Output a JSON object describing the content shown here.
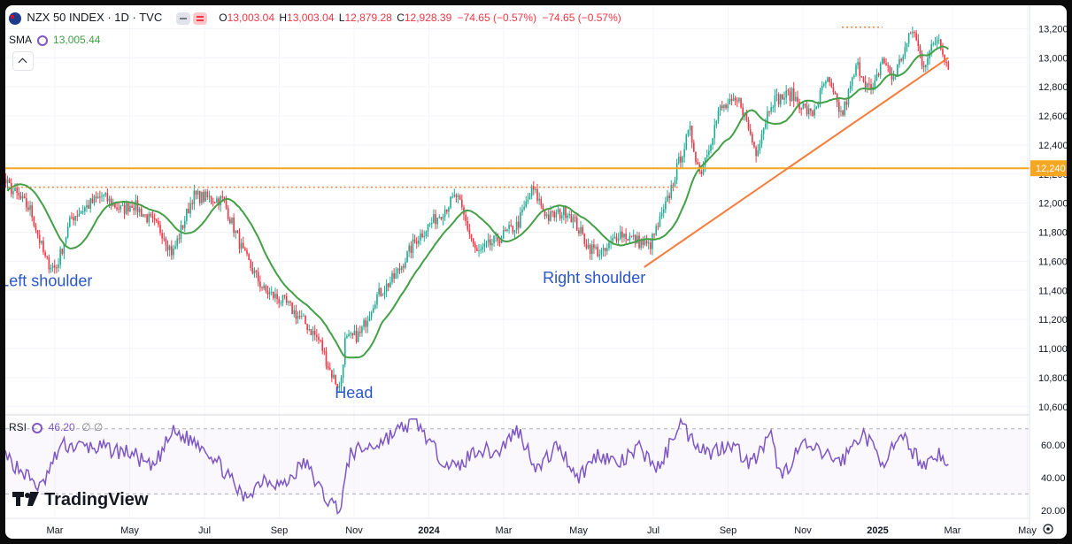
{
  "header": {
    "symbol": "NZX 50 INDEX · 1D · TVC",
    "open_label": "O",
    "open": "13,003.04",
    "high_label": "H",
    "high": "13,003.04",
    "low_label": "L",
    "low": "12,879.28",
    "close_label": "C",
    "close": "12,928.39",
    "change": "−74.65 (−0.57%)",
    "change2": "−74.65 (−0.57%)",
    "sma_label": "SMA",
    "sma_value": "13,005.44",
    "rsi_label": "RSI",
    "rsi_value": "46.20",
    "rsi_extra": "∅ ∅"
  },
  "branding": {
    "logo_text": "TradingView"
  },
  "icons": {
    "flag": "nz-flag-icon",
    "settings": "gear-icon",
    "collapse": "chevron-up-icon"
  },
  "colors": {
    "up": "#22ab94",
    "down": "#f23645",
    "sma": "#43a047",
    "resistance": "#f5a623",
    "trendline": "#f57c3a",
    "rsi": "#7e57c2",
    "annotation": "#2a56c6"
  },
  "chart_data": {
    "type": "candlestick",
    "price_axis": {
      "ticks": [
        "13,200",
        "13,000",
        "12,800",
        "12,600",
        "12,400",
        "12,200",
        "12,000",
        "11,800",
        "11,600",
        "11,400",
        "11,200",
        "11,000",
        "10,800",
        "10,600"
      ],
      "ylim": [
        10550,
        13300
      ]
    },
    "rsi_axis": {
      "ticks": [
        "60.00",
        "40.00",
        "20.00"
      ],
      "levels": [
        70,
        30
      ],
      "ylim": [
        15,
        78
      ]
    },
    "time_axis": {
      "labels": [
        "Mar",
        "May",
        "Jul",
        "Sep",
        "Nov",
        "2024",
        "Mar",
        "May",
        "Jul",
        "Sep",
        "Nov",
        "2025",
        "Mar",
        "May"
      ]
    },
    "resistance_line": {
      "value": 12240,
      "label": "12,240"
    },
    "annotations": [
      {
        "text": "Left shoulder",
        "t": 0.03,
        "v": 11430
      },
      {
        "text": "Head",
        "t": 0.36,
        "v": 10660
      },
      {
        "text": "Right shoulder",
        "t": 0.565,
        "v": 11450
      }
    ],
    "dotted_levels": [
      {
        "t1": 0.02,
        "t2": 0.7,
        "value": 12110
      },
      {
        "t1": 0.86,
        "t2": 0.9,
        "value": 13210
      }
    ],
    "trendline": {
      "t1": 0.665,
      "v1": 11560,
      "t2": 0.965,
      "v2": 13000
    },
    "price_keypoints": [
      [
        0.0,
        11900
      ],
      [
        0.02,
        12150
      ],
      [
        0.03,
        12180
      ],
      [
        0.06,
        11950
      ],
      [
        0.075,
        11600
      ],
      [
        0.085,
        11550
      ],
      [
        0.1,
        11900
      ],
      [
        0.13,
        12050
      ],
      [
        0.15,
        11950
      ],
      [
        0.16,
        12000
      ],
      [
        0.19,
        11800
      ],
      [
        0.2,
        11650
      ],
      [
        0.22,
        12050
      ],
      [
        0.25,
        12020
      ],
      [
        0.27,
        11650
      ],
      [
        0.29,
        11400
      ],
      [
        0.31,
        11320
      ],
      [
        0.33,
        11180
      ],
      [
        0.345,
        11050
      ],
      [
        0.355,
        10850
      ],
      [
        0.365,
        10720
      ],
      [
        0.37,
        11050
      ],
      [
        0.385,
        11100
      ],
      [
        0.4,
        11350
      ],
      [
        0.42,
        11500
      ],
      [
        0.44,
        11750
      ],
      [
        0.46,
        11900
      ],
      [
        0.48,
        12050
      ],
      [
        0.5,
        11650
      ],
      [
        0.52,
        11750
      ],
      [
        0.54,
        11850
      ],
      [
        0.555,
        12100
      ],
      [
        0.57,
        11900
      ],
      [
        0.59,
        11950
      ],
      [
        0.61,
        11700
      ],
      [
        0.625,
        11650
      ],
      [
        0.64,
        11800
      ],
      [
        0.67,
        11700
      ],
      [
        0.685,
        11950
      ],
      [
        0.7,
        12300
      ],
      [
        0.71,
        12500
      ],
      [
        0.72,
        12200
      ],
      [
        0.74,
        12650
      ],
      [
        0.76,
        12700
      ],
      [
        0.775,
        12350
      ],
      [
        0.79,
        12700
      ],
      [
        0.81,
        12750
      ],
      [
        0.83,
        12600
      ],
      [
        0.845,
        12850
      ],
      [
        0.86,
        12600
      ],
      [
        0.875,
        12950
      ],
      [
        0.89,
        12750
      ],
      [
        0.9,
        13000
      ],
      [
        0.91,
        12850
      ],
      [
        0.93,
        13200
      ],
      [
        0.94,
        12950
      ],
      [
        0.955,
        13150
      ],
      [
        0.965,
        12930
      ]
    ],
    "rsi_keypoints": [
      [
        0.0,
        70
      ],
      [
        0.03,
        55
      ],
      [
        0.05,
        45
      ],
      [
        0.07,
        33
      ],
      [
        0.09,
        60
      ],
      [
        0.13,
        58
      ],
      [
        0.16,
        55
      ],
      [
        0.18,
        45
      ],
      [
        0.2,
        68
      ],
      [
        0.23,
        60
      ],
      [
        0.25,
        45
      ],
      [
        0.27,
        27
      ],
      [
        0.29,
        40
      ],
      [
        0.31,
        35
      ],
      [
        0.33,
        50
      ],
      [
        0.35,
        28
      ],
      [
        0.365,
        20
      ],
      [
        0.375,
        55
      ],
      [
        0.4,
        60
      ],
      [
        0.42,
        68
      ],
      [
        0.44,
        75
      ],
      [
        0.46,
        55
      ],
      [
        0.48,
        45
      ],
      [
        0.5,
        58
      ],
      [
        0.52,
        55
      ],
      [
        0.54,
        70
      ],
      [
        0.56,
        45
      ],
      [
        0.58,
        60
      ],
      [
        0.6,
        40
      ],
      [
        0.62,
        55
      ],
      [
        0.64,
        48
      ],
      [
        0.66,
        58
      ],
      [
        0.68,
        45
      ],
      [
        0.7,
        75
      ],
      [
        0.71,
        65
      ],
      [
        0.73,
        55
      ],
      [
        0.75,
        62
      ],
      [
        0.77,
        48
      ],
      [
        0.79,
        65
      ],
      [
        0.8,
        40
      ],
      [
        0.82,
        60
      ],
      [
        0.84,
        55
      ],
      [
        0.86,
        50
      ],
      [
        0.88,
        68
      ],
      [
        0.9,
        50
      ],
      [
        0.92,
        64
      ],
      [
        0.94,
        48
      ],
      [
        0.955,
        55
      ],
      [
        0.965,
        46.2
      ]
    ]
  }
}
